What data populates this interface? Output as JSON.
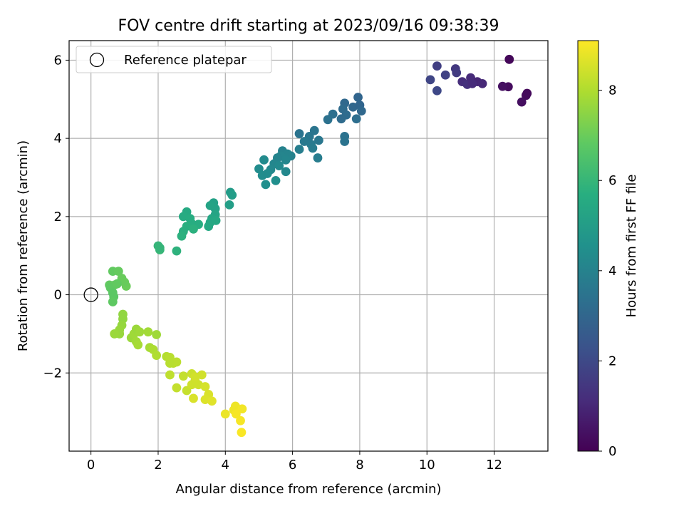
{
  "chart_data": {
    "type": "scatter",
    "title": "FOV centre drift starting at 2023/09/16 09:38:39",
    "xlabel": "Angular distance from reference (arcmin)",
    "ylabel": "Rotation from reference (arcmin)",
    "xlim": [
      -0.65,
      13.6
    ],
    "ylim": [
      -4.0,
      6.5
    ],
    "xticks": [
      "0",
      "2",
      "4",
      "6",
      "8",
      "10",
      "12"
    ],
    "xtick_values": [
      0,
      2,
      4,
      6,
      8,
      10,
      12
    ],
    "yticks": [
      "−2",
      "0",
      "2",
      "4",
      "6"
    ],
    "ytick_values": [
      -2,
      0,
      2,
      4,
      6
    ],
    "grid": true,
    "legend": {
      "label": "Reference platepar",
      "position": "top-left"
    },
    "reference_point": [
      0,
      0
    ],
    "colorbar": {
      "label": "Hours from first FF file",
      "range": [
        0,
        9.1
      ],
      "ticks": [
        "0",
        "2",
        "4",
        "6",
        "8"
      ],
      "tick_values": [
        0,
        2,
        4,
        6,
        8
      ],
      "colormap": "viridis"
    },
    "points": [
      [
        12.45,
        6.02,
        0.15
      ],
      [
        12.42,
        5.32,
        0.3
      ],
      [
        12.25,
        5.33,
        0.4
      ],
      [
        12.98,
        5.15,
        0.2
      ],
      [
        12.95,
        5.1,
        0.25
      ],
      [
        12.82,
        4.93,
        0.35
      ],
      [
        10.3,
        5.85,
        1.7
      ],
      [
        10.1,
        5.5,
        1.9
      ],
      [
        10.55,
        5.62,
        1.8
      ],
      [
        10.3,
        5.22,
        2.0
      ],
      [
        10.85,
        5.78,
        1.5
      ],
      [
        10.88,
        5.68,
        1.6
      ],
      [
        11.05,
        5.45,
        1.2
      ],
      [
        11.2,
        5.38,
        1.3
      ],
      [
        11.3,
        5.55,
        1.1
      ],
      [
        11.5,
        5.45,
        1.0
      ],
      [
        11.65,
        5.4,
        1.05
      ],
      [
        11.35,
        5.4,
        1.15
      ],
      [
        7.95,
        5.05,
        3.0
      ],
      [
        7.55,
        4.9,
        3.1
      ],
      [
        7.8,
        4.8,
        3.05
      ],
      [
        8.0,
        4.85,
        3.0
      ],
      [
        7.5,
        4.75,
        3.2
      ],
      [
        7.6,
        4.6,
        3.25
      ],
      [
        7.9,
        4.5,
        3.3
      ],
      [
        8.05,
        4.7,
        3.1
      ],
      [
        7.2,
        4.62,
        3.35
      ],
      [
        7.05,
        4.48,
        3.4
      ],
      [
        7.55,
        4.05,
        3.45
      ],
      [
        7.55,
        3.92,
        3.5
      ],
      [
        7.45,
        4.5,
        3.2
      ],
      [
        6.2,
        4.12,
        3.5
      ],
      [
        6.5,
        4.05,
        3.6
      ],
      [
        6.65,
        4.2,
        3.55
      ],
      [
        6.78,
        3.95,
        3.65
      ],
      [
        6.35,
        3.92,
        3.7
      ],
      [
        6.55,
        3.85,
        3.75
      ],
      [
        6.6,
        3.75,
        3.8
      ],
      [
        6.75,
        3.5,
        3.85
      ],
      [
        6.2,
        3.72,
        3.9
      ],
      [
        5.95,
        3.55,
        4.0
      ],
      [
        5.7,
        3.68,
        4.05
      ],
      [
        5.85,
        3.6,
        4.1
      ],
      [
        5.65,
        3.55,
        4.15
      ],
      [
        5.8,
        3.45,
        4.2
      ],
      [
        5.55,
        3.5,
        4.1
      ],
      [
        5.45,
        3.35,
        4.2
      ],
      [
        5.35,
        3.2,
        4.25
      ],
      [
        5.6,
        3.3,
        4.3
      ],
      [
        5.8,
        3.15,
        4.25
      ],
      [
        5.15,
        3.45,
        4.35
      ],
      [
        5.0,
        3.22,
        4.4
      ],
      [
        5.1,
        3.05,
        4.45
      ],
      [
        5.25,
        3.1,
        4.4
      ],
      [
        5.2,
        2.82,
        4.5
      ],
      [
        5.5,
        2.92,
        4.5
      ],
      [
        4.15,
        2.62,
        5.0
      ],
      [
        4.2,
        2.55,
        5.05
      ],
      [
        4.12,
        2.3,
        5.1
      ],
      [
        3.65,
        2.35,
        5.2
      ],
      [
        3.7,
        2.2,
        5.25
      ],
      [
        3.55,
        2.28,
        5.3
      ],
      [
        3.7,
        2.05,
        5.35
      ],
      [
        3.6,
        1.95,
        5.4
      ],
      [
        3.55,
        1.85,
        5.45
      ],
      [
        3.72,
        1.9,
        5.5
      ],
      [
        3.5,
        1.75,
        5.5
      ],
      [
        2.85,
        2.12,
        5.55
      ],
      [
        2.75,
        2.0,
        5.6
      ],
      [
        2.95,
        1.95,
        5.65
      ],
      [
        3.0,
        1.82,
        5.7
      ],
      [
        3.2,
        1.8,
        5.7
      ],
      [
        2.85,
        1.75,
        5.75
      ],
      [
        3.05,
        1.68,
        5.8
      ],
      [
        2.75,
        1.62,
        5.75
      ],
      [
        2.7,
        1.5,
        5.8
      ],
      [
        2.55,
        1.12,
        5.85
      ],
      [
        2.0,
        1.25,
        6.0
      ],
      [
        2.05,
        1.15,
        6.05
      ],
      [
        2.05,
        1.2,
        6.0
      ],
      [
        0.65,
        0.6,
        6.9
      ],
      [
        0.82,
        0.6,
        6.95
      ],
      [
        0.92,
        0.42,
        7.0
      ],
      [
        1.05,
        0.22,
        7.05
      ],
      [
        1.0,
        0.32,
        7.0
      ],
      [
        0.7,
        0.25,
        6.95
      ],
      [
        0.55,
        0.25,
        6.9
      ],
      [
        0.58,
        0.18,
        6.85
      ],
      [
        0.65,
        0.05,
        6.8
      ],
      [
        0.68,
        -0.05,
        6.8
      ],
      [
        0.65,
        -0.18,
        6.85
      ],
      [
        0.78,
        0.28,
        6.9
      ],
      [
        0.95,
        -0.5,
        7.6
      ],
      [
        0.95,
        -0.62,
        7.6
      ],
      [
        0.92,
        -0.78,
        7.65
      ],
      [
        0.85,
        -0.9,
        7.7
      ],
      [
        0.85,
        -1.0,
        7.7
      ],
      [
        0.7,
        -1.0,
        7.75
      ],
      [
        1.2,
        -1.1,
        7.75
      ],
      [
        1.28,
        -1.0,
        7.8
      ],
      [
        1.35,
        -0.88,
        7.75
      ],
      [
        1.45,
        -0.95,
        7.8
      ],
      [
        1.35,
        -1.2,
        7.85
      ],
      [
        1.4,
        -1.28,
        7.9
      ],
      [
        1.7,
        -0.95,
        7.85
      ],
      [
        1.95,
        -1.02,
        7.8
      ],
      [
        1.75,
        -1.35,
        7.9
      ],
      [
        1.85,
        -1.4,
        8.0
      ],
      [
        1.95,
        -1.55,
        8.05
      ],
      [
        2.25,
        -1.58,
        8.1
      ],
      [
        2.35,
        -1.6,
        8.15
      ],
      [
        2.45,
        -1.75,
        8.2
      ],
      [
        2.55,
        -1.72,
        8.2
      ],
      [
        2.35,
        -1.75,
        8.15
      ],
      [
        2.35,
        -2.05,
        8.25
      ],
      [
        2.75,
        -2.08,
        8.3
      ],
      [
        2.55,
        -2.38,
        8.3
      ],
      [
        2.85,
        -2.45,
        8.35
      ],
      [
        3.0,
        -2.02,
        8.4
      ],
      [
        3.1,
        -2.2,
        8.4
      ],
      [
        3.2,
        -2.3,
        8.45
      ],
      [
        3.0,
        -2.3,
        8.45
      ],
      [
        3.1,
        -2.1,
        8.5
      ],
      [
        3.3,
        -2.05,
        8.5
      ],
      [
        3.4,
        -2.35,
        8.55
      ],
      [
        3.5,
        -2.55,
        8.6
      ],
      [
        3.05,
        -2.65,
        8.6
      ],
      [
        3.4,
        -2.68,
        8.65
      ],
      [
        3.6,
        -2.72,
        8.7
      ],
      [
        4.0,
        -3.05,
        8.85
      ],
      [
        4.25,
        -2.95,
        8.9
      ],
      [
        4.3,
        -2.85,
        8.9
      ],
      [
        4.5,
        -2.92,
        8.95
      ],
      [
        4.45,
        -3.22,
        9.0
      ],
      [
        4.48,
        -3.52,
        9.05
      ],
      [
        4.32,
        -3.05,
        9.0
      ]
    ]
  }
}
